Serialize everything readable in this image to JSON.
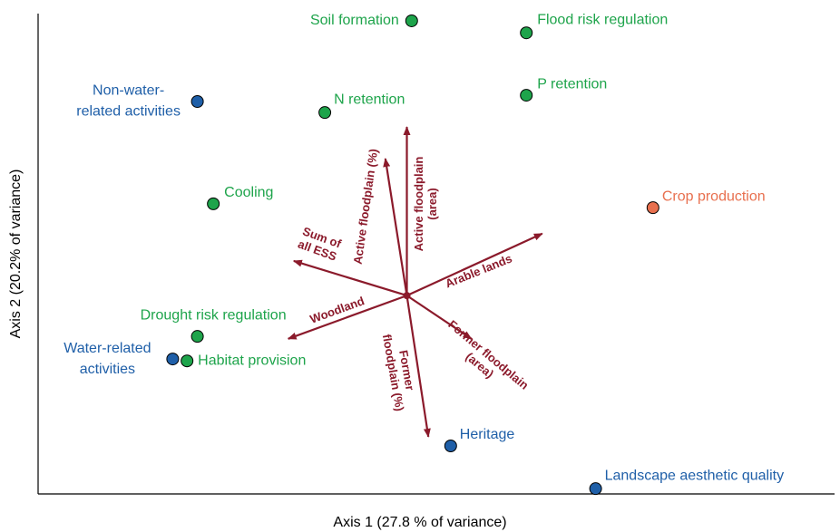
{
  "chart_data": {
    "type": "biplot",
    "x_label": "Axis 1 (27.8 % of variance)",
    "y_label": "Axis 2 (20.2% of variance)",
    "xlim": [
      0,
      100
    ],
    "ylim": [
      0,
      100
    ],
    "points": [
      {
        "label": [
          "Soil formation"
        ],
        "color": "#1ea44b",
        "x": 46.9,
        "y": 98.5
      },
      {
        "label": [
          "Flood risk regulation"
        ],
        "color": "#1ea44b",
        "x": 61.3,
        "y": 96.0
      },
      {
        "label": [
          "P retention"
        ],
        "color": "#1ea44b",
        "x": 61.3,
        "y": 83.0
      },
      {
        "label": [
          "N retention"
        ],
        "color": "#1ea44b",
        "x": 36.0,
        "y": 79.4
      },
      {
        "label": [
          "Non-water-",
          "related activities"
        ],
        "color": "#1f5fa8",
        "x": 20.0,
        "y": 81.7
      },
      {
        "label": [
          "Cooling"
        ],
        "color": "#1ea44b",
        "x": 22.0,
        "y": 60.4
      },
      {
        "label": [
          "Crop production"
        ],
        "color": "#e8704f",
        "x": 77.2,
        "y": 59.6
      },
      {
        "label": [
          "Drought risk regulation"
        ],
        "color": "#1ea44b",
        "x": 20.0,
        "y": 32.8
      },
      {
        "label": [
          "Water-related",
          "activities"
        ],
        "color": "#1f5fa8",
        "x": 16.9,
        "y": 28.1
      },
      {
        "label": [
          "Habitat provision"
        ],
        "color": "#1ea44b",
        "x": 18.7,
        "y": 27.7
      },
      {
        "label": [
          "Heritage"
        ],
        "color": "#1f5fa8",
        "x": 51.8,
        "y": 10.0
      },
      {
        "label": [
          "Landscape aesthetic quality"
        ],
        "color": "#1f5fa8",
        "x": 70.0,
        "y": 1.1
      }
    ],
    "vector_color": "#8b1a2b",
    "vector_origin": [
      46.3,
      41.3
    ],
    "vectors": [
      {
        "label": [
          "Active floodplain",
          "(area)"
        ],
        "x": 46.3,
        "y": 76.4
      },
      {
        "label": [
          "Active floodplain (%)"
        ],
        "x": 43.6,
        "y": 69.8
      },
      {
        "label": [
          "Sum of",
          "all ESS"
        ],
        "x": 32.1,
        "y": 48.5
      },
      {
        "label": [
          "Arable lands"
        ],
        "x": 63.3,
        "y": 54.2
      },
      {
        "label": [
          "Woodland"
        ],
        "x": 31.4,
        "y": 32.3
      },
      {
        "label": [
          "Former floodplain",
          "(area)"
        ],
        "x": 54.4,
        "y": 32.3
      },
      {
        "label": [
          "Former",
          "floodplain (%)"
        ],
        "x": 49.0,
        "y": 11.9
      }
    ]
  }
}
